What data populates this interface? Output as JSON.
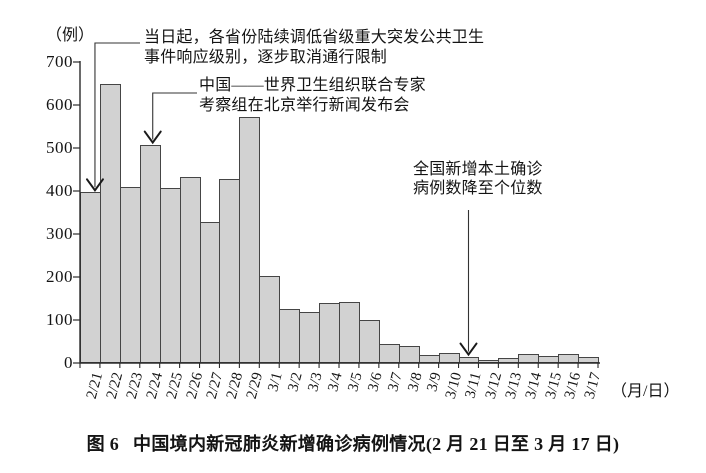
{
  "figure": {
    "caption_prefix": "图 6",
    "caption_text": "中国境内新冠肺炎新增确诊病例情况(2 月 21 日至 3 月 17 日)"
  },
  "chart_data": {
    "type": "bar",
    "title": "图 6 中国境内新冠肺炎新增确诊病例情况(2 月 21 日至 3 月 17 日)",
    "categories": [
      "2/21",
      "2/22",
      "2/23",
      "2/24",
      "2/25",
      "2/26",
      "2/27",
      "2/28",
      "2/29",
      "3/1",
      "3/2",
      "3/3",
      "3/4",
      "3/5",
      "3/6",
      "3/7",
      "3/8",
      "3/9",
      "3/10",
      "3/11",
      "3/12",
      "3/13",
      "3/14",
      "3/15",
      "3/16",
      "3/17"
    ],
    "values": [
      397,
      648,
      409,
      508,
      406,
      433,
      327,
      427,
      573,
      202,
      125,
      119,
      139,
      143,
      99,
      44,
      40,
      19,
      24,
      15,
      8,
      11,
      20,
      16,
      21,
      13
    ],
    "xlabel": "（月/日）",
    "ylabel": "（例）",
    "ylim": [
      0,
      700
    ],
    "y_ticks": [
      0,
      100,
      200,
      300,
      400,
      500,
      600,
      700
    ],
    "grid": false,
    "legend": null,
    "bar_fill": "#d2d2d2",
    "bar_border": "#454545",
    "axis_color": "#2b2b2b",
    "annotations": [
      {
        "lines": [
          "当日起，各省份陆续调低省级重大突发公共卫生",
          "事件响应级别，逐步取消通行限制"
        ],
        "target": "2/21"
      },
      {
        "lines": [
          "中国——世界卫生组织联合专家",
          "考察组在北京举行新闻发布会"
        ],
        "target": "2/24"
      },
      {
        "lines": [
          "全国新增本土确诊",
          "病例数降至个位数"
        ],
        "target": "3/11"
      }
    ]
  }
}
